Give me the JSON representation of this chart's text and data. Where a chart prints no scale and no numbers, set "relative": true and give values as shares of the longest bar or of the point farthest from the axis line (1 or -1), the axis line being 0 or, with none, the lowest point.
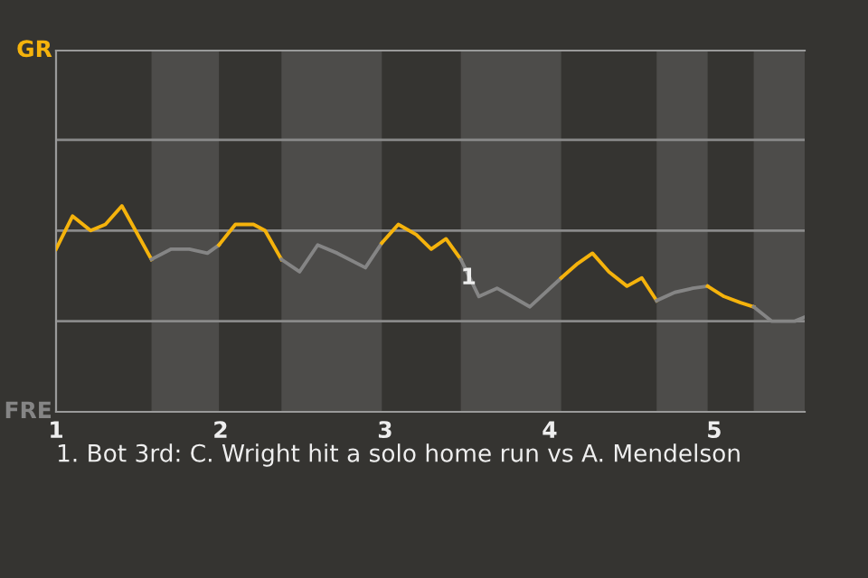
{
  "chart_data": {
    "type": "line",
    "relative": true,
    "series": [
      {
        "color": "#f5b30c",
        "x": [
          1,
          1.1,
          1.21,
          1.3,
          1.4,
          1.58
        ],
        "values": [
          0.79,
          0.95,
          0.88,
          0.91,
          1,
          0.74
        ]
      },
      {
        "color": "#858585",
        "x": [
          1.58,
          1.7,
          1.81,
          1.92,
          1.99
        ],
        "values": [
          0.74,
          0.79,
          0.79,
          0.77,
          0.81
        ]
      },
      {
        "color": "#f5b30c",
        "x": [
          1.99,
          2.09,
          2.2,
          2.27,
          2.37
        ],
        "values": [
          0.81,
          0.91,
          0.91,
          0.88,
          0.74
        ]
      },
      {
        "color": "#858585",
        "x": [
          2.37,
          2.48,
          2.59,
          2.71,
          2.88,
          2.98
        ],
        "values": [
          0.74,
          0.68,
          0.81,
          0.77,
          0.7,
          0.82
        ]
      },
      {
        "color": "#f5b30c",
        "x": [
          2.98,
          3.08,
          3.19,
          3.28,
          3.37,
          3.46
        ],
        "values": [
          0.82,
          0.91,
          0.86,
          0.79,
          0.84,
          0.74
        ]
      },
      {
        "color": "#858585",
        "x": [
          3.46,
          3.57,
          3.68,
          3.77,
          3.88,
          4.07
        ],
        "values": [
          0.74,
          0.56,
          0.6,
          0.56,
          0.51,
          0.65
        ]
      },
      {
        "color": "#f5b30c",
        "x": [
          4.07,
          4.17,
          4.26,
          4.36,
          4.47,
          4.56,
          4.65
        ],
        "values": [
          0.65,
          0.72,
          0.77,
          0.68,
          0.61,
          0.65,
          0.54
        ]
      },
      {
        "color": "#858585",
        "x": [
          4.65,
          4.76,
          4.87,
          4.96
        ],
        "values": [
          0.54,
          0.58,
          0.6,
          0.61
        ]
      },
      {
        "color": "#f5b30c",
        "x": [
          4.96,
          5.06,
          5.16,
          5.24
        ],
        "values": [
          0.61,
          0.56,
          0.53,
          0.51
        ]
      },
      {
        "color": "#858585",
        "x": [
          5.24,
          5.35,
          5.49,
          5.55
        ],
        "values": [
          0.51,
          0.44,
          0.44,
          0.46
        ]
      }
    ],
    "xlim": [
      1,
      5.55
    ],
    "xticks": [
      1,
      2,
      3,
      4,
      5
    ],
    "ref_lines": [
      {
        "axis": "y",
        "value": 0.44,
        "color": "#8a8a8a"
      },
      {
        "axis": "y",
        "value": 0.88,
        "color": "#8a8a8a"
      },
      {
        "axis": "y",
        "value": 1.32,
        "color": "#8a8a8a"
      }
    ],
    "marker": "none",
    "line_style": "solid",
    "bands": [
      {
        "axis": "x",
        "from": 1.58,
        "to": 1.99,
        "color": "#4d4c4a"
      },
      {
        "axis": "x",
        "from": 2.37,
        "to": 2.98,
        "color": "#4d4c4a"
      },
      {
        "axis": "x",
        "from": 3.46,
        "to": 4.07,
        "color": "#4d4c4a"
      },
      {
        "axis": "x",
        "from": 4.65,
        "to": 4.96,
        "color": "#4d4c4a"
      },
      {
        "axis": "x",
        "from": 5.24,
        "to": 5.55,
        "color": "#4d4c4a"
      }
    ],
    "annotations": [
      "GR",
      "FRE",
      {
        "text": "1",
        "x": 3.57,
        "y": 0.56
      },
      "1. Bot 3rd: C. Wright hit a solo home run vs A. Mendelson"
    ]
  }
}
